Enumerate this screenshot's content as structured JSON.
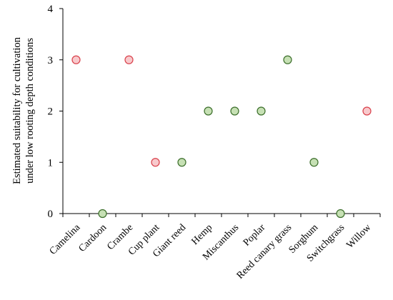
{
  "chart_data": {
    "type": "scatter",
    "title": "",
    "xlabel": "",
    "ylabel_lines": [
      "Estimated suitability for cultivation",
      "under low rooting depth conditions"
    ],
    "ylim": [
      0,
      4
    ],
    "yticks": [
      "0",
      "1",
      "2",
      "3",
      "4"
    ],
    "grid": false,
    "categories": [
      "Camelina",
      "Cardoon",
      "Crambe",
      "Cup plant",
      "Giant reed",
      "Hemp",
      "Miscanthus",
      "Poplar",
      "Reed canary grass",
      "Sorghum",
      "Switchgrass",
      "Willow"
    ],
    "values": [
      3,
      0,
      3,
      1,
      1,
      2,
      2,
      2,
      3,
      1,
      0,
      2
    ],
    "point_colors": [
      "red",
      "green",
      "red",
      "red",
      "green",
      "green",
      "green",
      "green",
      "green",
      "green",
      "green",
      "red"
    ],
    "colors": {
      "red": {
        "fill": "#f8c9cc",
        "stroke": "#d9404a"
      },
      "green": {
        "fill": "#c6e0b4",
        "stroke": "#3b6e2a"
      },
      "axis": "#000000"
    }
  }
}
